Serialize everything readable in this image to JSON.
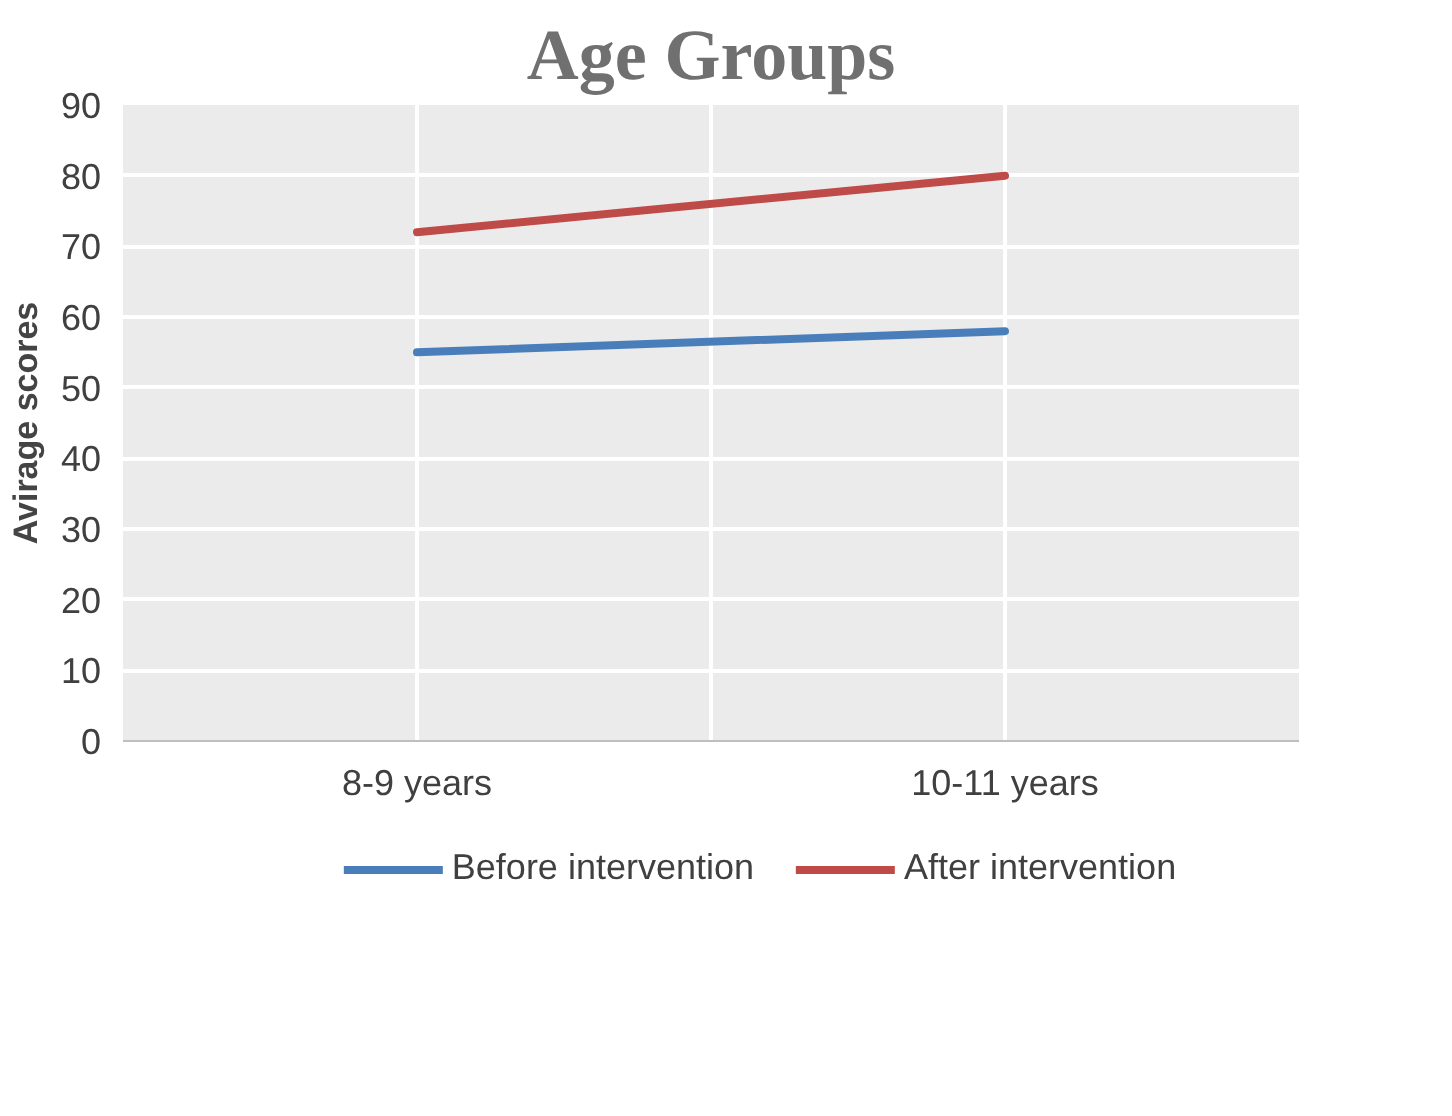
{
  "chart_data": {
    "type": "line",
    "title": "Age Groups",
    "ylabel": "Avirage scores",
    "categories": [
      "8-9 years",
      "10-11 years"
    ],
    "series": [
      {
        "name": "Before intervention",
        "color": "#4a7ebb",
        "values": [
          55,
          58
        ]
      },
      {
        "name": "After intervention",
        "color": "#be4b48",
        "values": [
          72,
          80
        ]
      }
    ],
    "ylim": [
      0,
      90
    ],
    "yticks": [
      0,
      10,
      20,
      30,
      40,
      50,
      60,
      70,
      80,
      90
    ],
    "grid": true,
    "legend": "bottom",
    "marker": "none",
    "line_style": "solid"
  }
}
